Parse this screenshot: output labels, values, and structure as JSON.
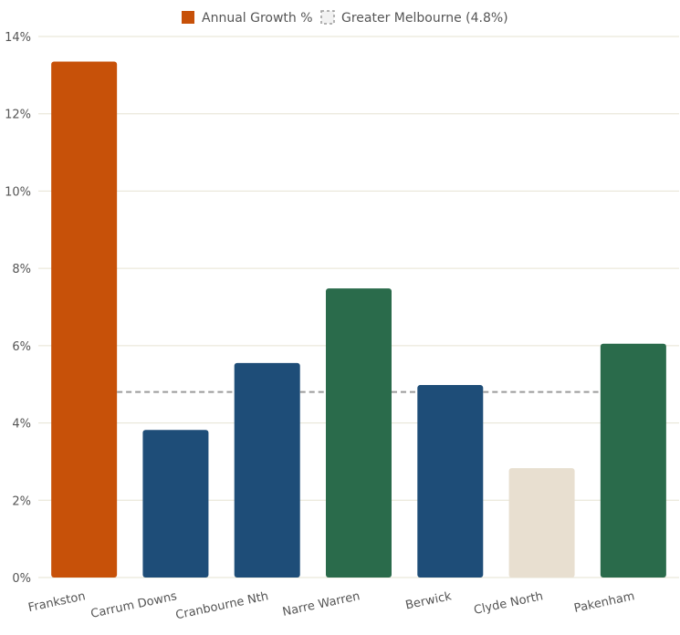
{
  "chart_data": {
    "type": "bar",
    "categories": [
      "Frankston",
      "Carrum Downs",
      "Cranbourne Nth",
      "Narre Warren",
      "Berwick",
      "Clyde North",
      "Pakenham"
    ],
    "series": [
      {
        "name": "Annual Growth %",
        "values": [
          13.35,
          3.82,
          5.55,
          7.48,
          4.98,
          2.83,
          6.05
        ],
        "colors": [
          "#c75109",
          "#1e4d78",
          "#1e4d78",
          "#2a6b4b",
          "#1e4d78",
          "#e8dfd0",
          "#2a6b4b"
        ]
      }
    ],
    "reference_line": {
      "name": "Greater Melbourne (4.8%)",
      "value": 4.8,
      "color": "#9a9a9a"
    },
    "legend": {
      "position": "top-center",
      "swatch_color": "#c75109"
    },
    "ylim": [
      0,
      14
    ],
    "yticks": [
      0,
      2,
      4,
      6,
      8,
      10,
      12,
      14
    ],
    "ytick_labels": [
      "0%",
      "2%",
      "4%",
      "6%",
      "8%",
      "10%",
      "12%",
      "14%"
    ],
    "grid": true,
    "grid_color": "#e6e3d2",
    "title": "",
    "xlabel": "",
    "ylabel": ""
  }
}
